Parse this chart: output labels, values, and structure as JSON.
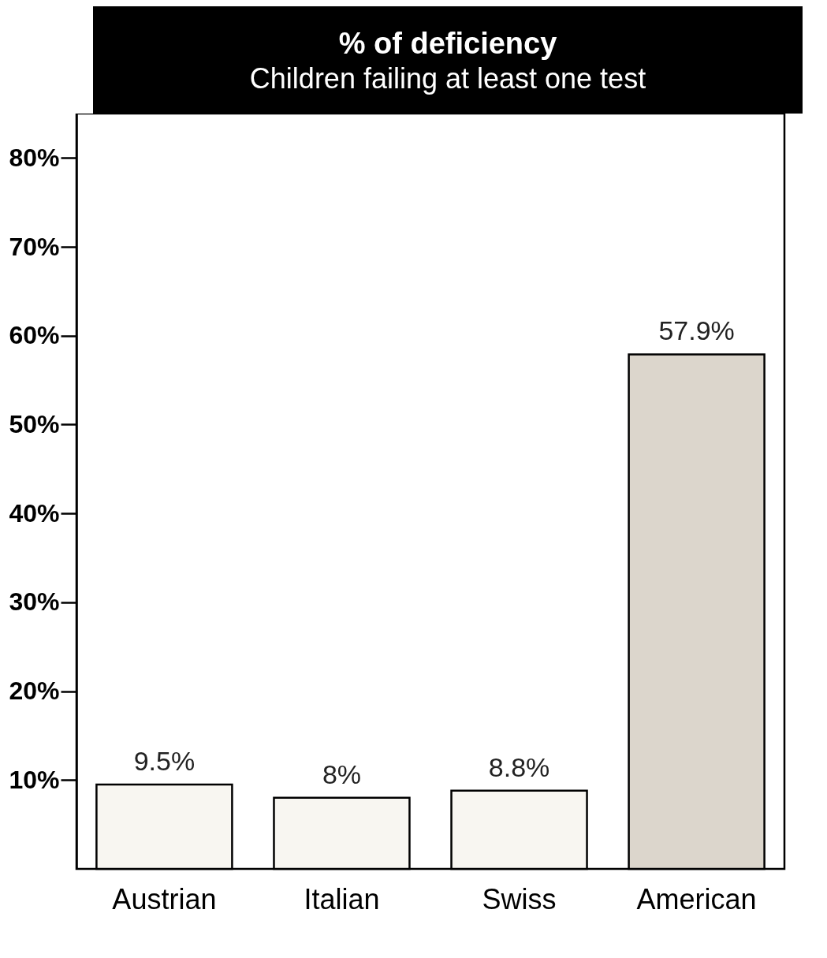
{
  "chart_data": {
    "type": "bar",
    "title": "% of deficiency",
    "subtitle": "Children failing at least one test",
    "categories": [
      "Austrian",
      "Italian",
      "Swiss",
      "American"
    ],
    "values": [
      9.5,
      8,
      8.8,
      57.9
    ],
    "value_labels": [
      "9.5%",
      "8%",
      "8.8%",
      "57.9%"
    ],
    "colors": [
      "#f8f6f1",
      "#f8f6f1",
      "#f8f6f1",
      "#dcd6cc"
    ],
    "ylim": [
      0,
      85
    ],
    "yticks": [
      {
        "value": 10,
        "label": "10%"
      },
      {
        "value": 20,
        "label": "20%"
      },
      {
        "value": 30,
        "label": "30%"
      },
      {
        "value": 40,
        "label": "40%"
      },
      {
        "value": 50,
        "label": "50%"
      },
      {
        "value": 60,
        "label": "60%"
      },
      {
        "value": 70,
        "label": "70%"
      },
      {
        "value": 80,
        "label": "80%"
      }
    ]
  }
}
